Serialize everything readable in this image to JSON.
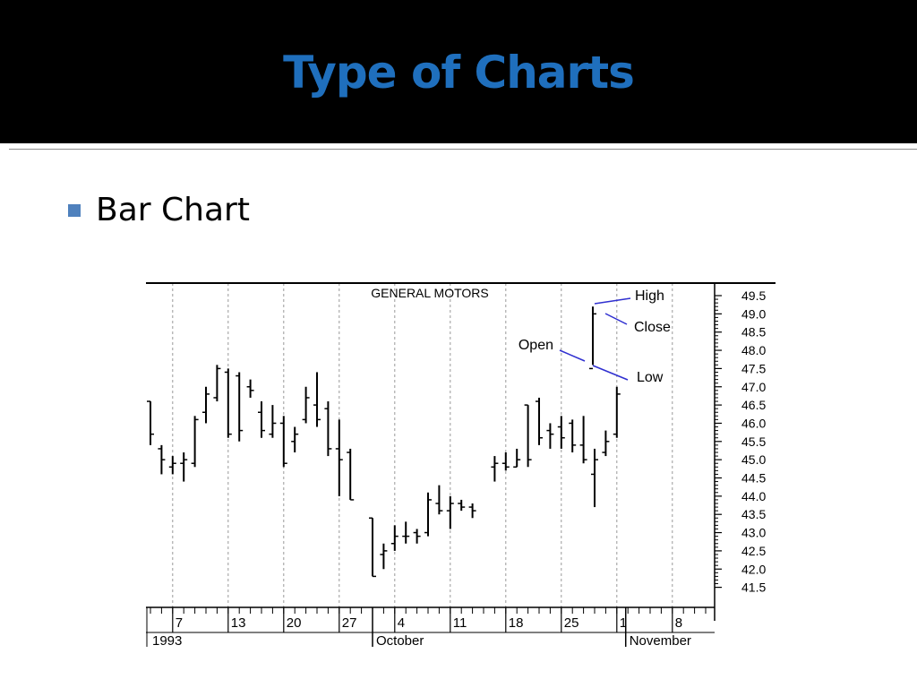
{
  "slide": {
    "title": "Type of Charts",
    "bullet": "Bar Chart"
  },
  "colors": {
    "title_bar": "#000000",
    "title_text": "#1f6fbd",
    "bullet": "#4f81bd",
    "annotation_line": "#3030d0"
  },
  "chart_data": {
    "type": "bar",
    "style": "OHLC",
    "title": "GENERAL MOTORS",
    "ylim": [
      41.0,
      49.8
    ],
    "y_ticks": [
      "49.5",
      "49.0",
      "48.5",
      "48.0",
      "47.5",
      "47.0",
      "46.5",
      "46.0",
      "45.5",
      "45.0",
      "44.5",
      "44.0",
      "43.5",
      "43.0",
      "42.5",
      "42.0",
      "41.5"
    ],
    "x_day_ticks": [
      "7",
      "13",
      "20",
      "27",
      "4",
      "11",
      "18",
      "25",
      "1",
      "8"
    ],
    "x_month_labels": [
      "1993",
      "October",
      "November"
    ],
    "grid": "vertical dashed",
    "legend": {
      "high": "High",
      "close": "Close",
      "open": "Open",
      "low": "Low",
      "example_bar": {
        "open": 47.5,
        "high": 49.2,
        "low": 47.6,
        "close": 49.0
      }
    },
    "bars": [
      {
        "day": 0,
        "open": 46.6,
        "high": 46.6,
        "low": 45.4,
        "close": 45.7
      },
      {
        "day": 1,
        "open": 45.3,
        "high": 45.4,
        "low": 44.6,
        "close": 45.0
      },
      {
        "day": 2,
        "open": 44.8,
        "high": 45.1,
        "low": 44.6,
        "close": 44.9
      },
      {
        "day": 3,
        "open": 44.9,
        "high": 45.2,
        "low": 44.4,
        "close": 45.0
      },
      {
        "day": 4,
        "open": 44.9,
        "high": 46.2,
        "low": 44.8,
        "close": 46.1
      },
      {
        "day": 5,
        "open": 46.3,
        "high": 47.0,
        "low": 46.0,
        "close": 46.8
      },
      {
        "day": 6,
        "open": 46.7,
        "high": 47.6,
        "low": 46.6,
        "close": 47.5
      },
      {
        "day": 7,
        "open": 47.4,
        "high": 47.5,
        "low": 45.6,
        "close": 45.7
      },
      {
        "day": 8,
        "open": 47.3,
        "high": 47.4,
        "low": 45.5,
        "close": 45.8
      },
      {
        "day": 9,
        "open": 47.0,
        "high": 47.2,
        "low": 46.7,
        "close": 46.9
      },
      {
        "day": 10,
        "open": 46.3,
        "high": 46.6,
        "low": 45.6,
        "close": 45.8
      },
      {
        "day": 11,
        "open": 45.7,
        "high": 46.5,
        "low": 45.6,
        "close": 46.0
      },
      {
        "day": 12,
        "open": 46.0,
        "high": 46.2,
        "low": 44.8,
        "close": 44.9
      },
      {
        "day": 13,
        "open": 45.5,
        "high": 45.9,
        "low": 45.2,
        "close": 45.7
      },
      {
        "day": 14,
        "open": 46.1,
        "high": 47.0,
        "low": 46.0,
        "close": 46.7
      },
      {
        "day": 15,
        "open": 46.5,
        "high": 47.4,
        "low": 45.9,
        "close": 46.1
      },
      {
        "day": 16,
        "open": 46.4,
        "high": 46.6,
        "low": 45.1,
        "close": 45.3
      },
      {
        "day": 17,
        "open": 45.3,
        "high": 46.1,
        "low": 44.0,
        "close": 45.0
      },
      {
        "day": 18,
        "open": 45.2,
        "high": 45.3,
        "low": 43.9,
        "close": 43.9
      },
      {
        "day": 20,
        "open": 43.4,
        "high": 43.4,
        "low": 41.8,
        "close": 41.8
      },
      {
        "day": 21,
        "open": 42.4,
        "high": 42.7,
        "low": 42.0,
        "close": 42.5
      },
      {
        "day": 22,
        "open": 42.7,
        "high": 43.2,
        "low": 42.5,
        "close": 42.9
      },
      {
        "day": 23,
        "open": 42.9,
        "high": 43.3,
        "low": 42.7,
        "close": 42.9
      },
      {
        "day": 24,
        "open": 43.0,
        "high": 43.1,
        "low": 42.7,
        "close": 42.9
      },
      {
        "day": 25,
        "open": 43.0,
        "high": 44.1,
        "low": 42.9,
        "close": 43.9
      },
      {
        "day": 26,
        "open": 43.8,
        "high": 44.3,
        "low": 43.5,
        "close": 43.6
      },
      {
        "day": 27,
        "open": 43.6,
        "high": 44.0,
        "low": 43.1,
        "close": 43.8
      },
      {
        "day": 28,
        "open": 43.8,
        "high": 43.9,
        "low": 43.6,
        "close": 43.7
      },
      {
        "day": 29,
        "open": 43.7,
        "high": 43.8,
        "low": 43.4,
        "close": 43.6
      },
      {
        "day": 31,
        "open": 44.8,
        "high": 45.1,
        "low": 44.4,
        "close": 44.9
      },
      {
        "day": 32,
        "open": 44.9,
        "high": 45.2,
        "low": 44.7,
        "close": 44.8
      },
      {
        "day": 33,
        "open": 44.8,
        "high": 45.3,
        "low": 44.8,
        "close": 45.0
      },
      {
        "day": 34,
        "open": 46.5,
        "high": 46.5,
        "low": 44.8,
        "close": 45.0
      },
      {
        "day": 35,
        "open": 46.6,
        "high": 46.7,
        "low": 45.4,
        "close": 45.6
      },
      {
        "day": 36,
        "open": 45.8,
        "high": 46.0,
        "low": 45.3,
        "close": 45.7
      },
      {
        "day": 37,
        "open": 45.9,
        "high": 46.2,
        "low": 45.3,
        "close": 45.6
      },
      {
        "day": 38,
        "open": 46.0,
        "high": 46.1,
        "low": 45.2,
        "close": 45.4
      },
      {
        "day": 39,
        "open": 45.4,
        "high": 46.2,
        "low": 44.9,
        "close": 45.0
      },
      {
        "day": 40,
        "open": 44.6,
        "high": 45.3,
        "low": 43.7,
        "close": 45.0
      },
      {
        "day": 41,
        "open": 45.2,
        "high": 45.8,
        "low": 45.1,
        "close": 45.5
      },
      {
        "day": 42,
        "open": 45.7,
        "high": 47.0,
        "low": 45.6,
        "close": 46.8
      }
    ]
  }
}
